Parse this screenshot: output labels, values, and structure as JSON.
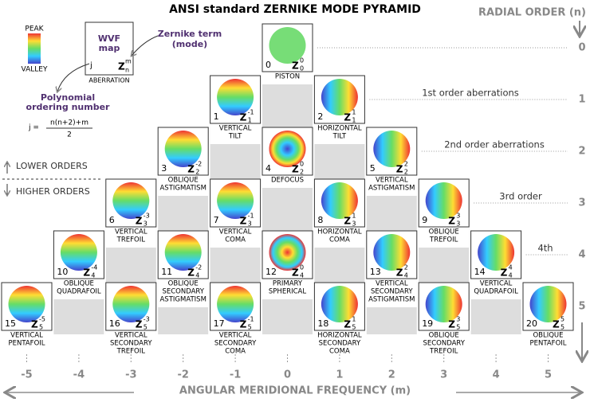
{
  "title": "ANSI standard ZERNIKE MODE PYRAMID",
  "radial_axis": {
    "title": "RADIAL ORDER (n)",
    "orders": [
      0,
      1,
      2,
      3,
      4,
      5
    ]
  },
  "angular_axis": {
    "title": "ANGULAR MERIDIONAL FREQUENCY (m)",
    "values": [
      -5,
      -4,
      -3,
      -2,
      -1,
      0,
      1,
      2,
      3,
      4,
      5
    ]
  },
  "order_notes": [
    "1st order aberrations",
    "2nd order aberrations",
    "3rd order",
    "4th"
  ],
  "legend": {
    "peak": "PEAK",
    "valley": "VALLEY"
  },
  "example": {
    "map": [
      "WVF",
      "map"
    ],
    "j": "j",
    "z": "Z",
    "sup": "m",
    "sub": "n",
    "caption": "ABERRATION",
    "term_note": [
      "Zernike term",
      "(mode)"
    ],
    "ordering_note": [
      "Polynomial",
      "ordering number"
    ],
    "formula_lhs": "j =",
    "formula_num": "n(n+2)+m",
    "formula_den": "2"
  },
  "orders_note": {
    "lower": "LOWER ORDERS",
    "higher": "HIGHER ORDERS"
  },
  "modes": [
    {
      "j": 0,
      "n": 0,
      "m": 0,
      "name": [
        "PISTON"
      ]
    },
    {
      "j": 1,
      "n": 1,
      "m": -1,
      "name": [
        "VERTICAL",
        "TILT"
      ]
    },
    {
      "j": 2,
      "n": 1,
      "m": 1,
      "name": [
        "HORIZONTAL",
        "TILT"
      ]
    },
    {
      "j": 3,
      "n": 2,
      "m": -2,
      "name": [
        "OBLIQUE",
        "ASTIGMATISM"
      ]
    },
    {
      "j": 4,
      "n": 2,
      "m": 0,
      "name": [
        "DEFOCUS"
      ]
    },
    {
      "j": 5,
      "n": 2,
      "m": 2,
      "name": [
        "VERTICAL",
        "ASTIGMATISM"
      ]
    },
    {
      "j": 6,
      "n": 3,
      "m": -3,
      "name": [
        "VERTICAL",
        "TREFOIL"
      ]
    },
    {
      "j": 7,
      "n": 3,
      "m": -1,
      "name": [
        "VERTICAL",
        "COMA"
      ]
    },
    {
      "j": 8,
      "n": 3,
      "m": 1,
      "name": [
        "HORIZONTAL",
        "COMA"
      ]
    },
    {
      "j": 9,
      "n": 3,
      "m": 3,
      "name": [
        "OBLIQUE",
        "TREFOIL"
      ]
    },
    {
      "j": 10,
      "n": 4,
      "m": -4,
      "name": [
        "OBLIQUE",
        "QUADRAFOIL"
      ]
    },
    {
      "j": 11,
      "n": 4,
      "m": -2,
      "name": [
        "OBLIQUE",
        "SECONDARY",
        "ASTIGMATISM"
      ]
    },
    {
      "j": 12,
      "n": 4,
      "m": 0,
      "name": [
        "PRIMARY",
        "SPHERICAL"
      ]
    },
    {
      "j": 13,
      "n": 4,
      "m": 2,
      "name": [
        "VERTICAL",
        "SECONDARY",
        "ASTIGMATISM"
      ]
    },
    {
      "j": 14,
      "n": 4,
      "m": 4,
      "name": [
        "VERTICAL",
        "QUADRAFOIL"
      ]
    },
    {
      "j": 15,
      "n": 5,
      "m": -5,
      "name": [
        "VERTICAL",
        "PENTAFOIL"
      ]
    },
    {
      "j": 16,
      "n": 5,
      "m": -3,
      "name": [
        "VERTICAL",
        "SECONDARY",
        "TREFOIL"
      ]
    },
    {
      "j": 17,
      "n": 5,
      "m": -1,
      "name": [
        "VERTICAL",
        "SECONDARY",
        "COMA"
      ]
    },
    {
      "j": 18,
      "n": 5,
      "m": 1,
      "name": [
        "HORIZONTAL",
        "SECONDARY",
        "COMA"
      ]
    },
    {
      "j": 19,
      "n": 5,
      "m": 3,
      "name": [
        "OBLIQUE",
        "SECONDARY",
        "TREFOIL"
      ]
    },
    {
      "j": 20,
      "n": 5,
      "m": 5,
      "name": [
        "OBLIQUE",
        "PENTAFOIL"
      ]
    }
  ]
}
